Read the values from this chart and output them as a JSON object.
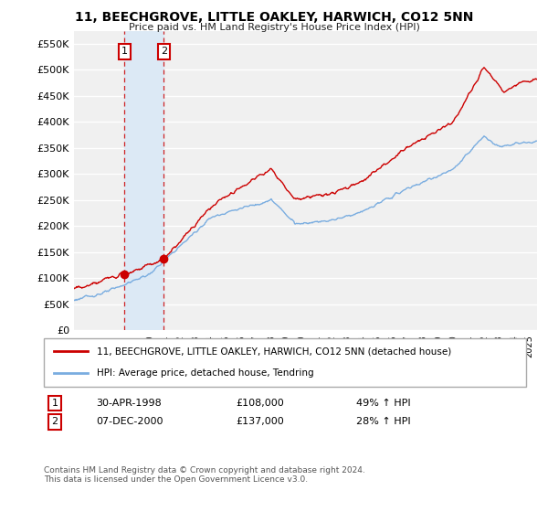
{
  "title": "11, BEECHGROVE, LITTLE OAKLEY, HARWICH, CO12 5NN",
  "subtitle": "Price paid vs. HM Land Registry's House Price Index (HPI)",
  "ylabel_ticks": [
    "£0",
    "£50K",
    "£100K",
    "£150K",
    "£200K",
    "£250K",
    "£300K",
    "£350K",
    "£400K",
    "£450K",
    "£500K",
    "£550K"
  ],
  "ytick_values": [
    0,
    50000,
    100000,
    150000,
    200000,
    250000,
    300000,
    350000,
    400000,
    450000,
    500000,
    550000
  ],
  "ylim": [
    0,
    575000
  ],
  "xmin": 1995.0,
  "xmax": 2025.5,
  "legend_label_red": "11, BEECHGROVE, LITTLE OAKLEY, HARWICH, CO12 5NN (detached house)",
  "legend_label_blue": "HPI: Average price, detached house, Tendring",
  "transaction1_date": "30-APR-1998",
  "transaction1_price": "£108,000",
  "transaction1_hpi": "49% ↑ HPI",
  "transaction1_x": 1998.33,
  "transaction1_y": 108000,
  "transaction2_date": "07-DEC-2000",
  "transaction2_price": "£137,000",
  "transaction2_hpi": "28% ↑ HPI",
  "transaction2_x": 2000.92,
  "transaction2_y": 137000,
  "red_color": "#cc0000",
  "blue_color": "#7aade0",
  "shade_color": "#dce9f5",
  "footnote": "Contains HM Land Registry data © Crown copyright and database right 2024.\nThis data is licensed under the Open Government Licence v3.0.",
  "background_color": "#ffffff",
  "plot_bg_color": "#f0f0f0"
}
